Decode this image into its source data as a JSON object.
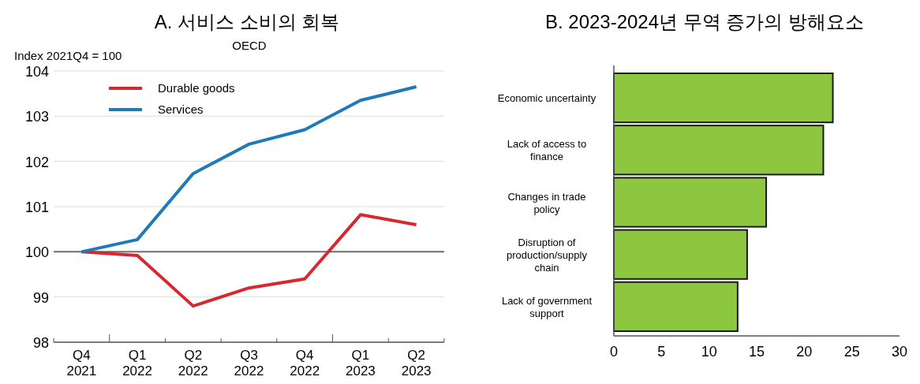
{
  "chart_data": [
    {
      "type": "line",
      "title": "A. 서비스 소비의 회복",
      "subtitle": "OECD",
      "ylabel": "Index 2021Q4 = 100",
      "categories": [
        "Q4\n2021",
        "Q1\n2022",
        "Q2\n2022",
        "Q3\n2022",
        "Q4\n2022",
        "Q1\n2023",
        "Q2\n2023"
      ],
      "series": [
        {
          "name": "Durable goods",
          "color": "#d7282f",
          "values": [
            100,
            99.92,
            98.8,
            99.2,
            99.4,
            100.82,
            100.6
          ]
        },
        {
          "name": "Services",
          "color": "#1f7bb8",
          "values": [
            100,
            100.27,
            101.73,
            102.38,
            102.7,
            103.35,
            103.65
          ]
        }
      ],
      "ylim": [
        98,
        104
      ],
      "yticks": [
        98,
        99,
        100,
        101,
        102,
        103,
        104
      ],
      "grid": "y",
      "legend": "top left",
      "ref_lines": [
        {
          "axis": "y",
          "value": 100,
          "color": "#6d6d6d"
        }
      ]
    },
    {
      "type": "bar",
      "title": "B. 2023-2024년 무역 증가의 방해요소",
      "orientation": "horizontal",
      "categories": [
        "Economic uncertainty",
        "Lack of access to\nfinance",
        "Changes in trade\npolicy",
        "Disruption of\nproduction/supply\nchain",
        "Lack of government\nsupport"
      ],
      "values": [
        23,
        22,
        16,
        14,
        13
      ],
      "color": "#8dc63f",
      "xlim": [
        0,
        30
      ],
      "xticks": [
        0,
        5,
        10,
        15,
        20,
        25,
        30
      ],
      "grid": false
    }
  ]
}
